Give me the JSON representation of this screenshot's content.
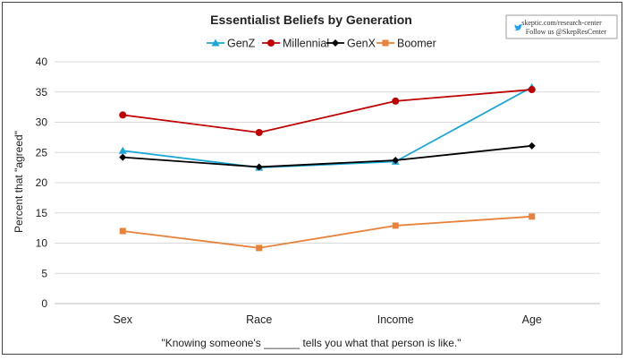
{
  "chart_data": {
    "type": "line",
    "title": "Essentialist Beliefs by Generation",
    "ylabel": "Percent that \"agreed\"",
    "caption": "\"Knowing someone's ______ tells you what that person is like.\"",
    "categories": [
      "Sex",
      "Race",
      "Income",
      "Age"
    ],
    "ylim": [
      0,
      40
    ],
    "yticks": [
      0,
      5,
      10,
      15,
      20,
      25,
      30,
      35,
      40
    ],
    "grid": true,
    "legend_position": "top-center",
    "series": [
      {
        "name": "GenZ",
        "color": "#1aa7d8",
        "marker": "triangle",
        "values": [
          25.3,
          22.5,
          23.5,
          35.8
        ]
      },
      {
        "name": "Millennial",
        "color": "#c00000",
        "marker": "circle",
        "values": [
          31.2,
          28.3,
          33.5,
          35.4
        ]
      },
      {
        "name": "GenX",
        "color": "#000000",
        "marker": "diamond",
        "values": [
          24.2,
          22.6,
          23.7,
          26.1
        ]
      },
      {
        "name": "Boomer",
        "color": "#e8823a",
        "marker": "square",
        "values": [
          12.0,
          9.2,
          12.9,
          14.4
        ]
      }
    ]
  },
  "badge": {
    "url": "skeptic.com/research-center",
    "twitter": "Follow us @SkepResCenter",
    "icon": "twitter-bird-icon"
  }
}
